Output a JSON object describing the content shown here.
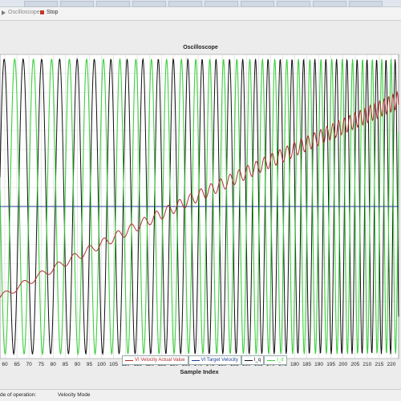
{
  "toolbar": {
    "oscilloscope_label": "Oscilloscope",
    "stop_label": "Stop"
  },
  "status": {
    "mode_prefix": "de of operation:",
    "mode_value": "Velocity Mode"
  },
  "colors": {
    "actual": "#b03030",
    "target": "#1f3f8f",
    "iq": "#101010",
    "id": "#3ecf3e"
  },
  "chart_data": {
    "type": "line",
    "title": "Oscilloscope",
    "xlabel": "Sample Index",
    "ylabel": "",
    "x_ticks": [
      60,
      65,
      70,
      75,
      80,
      85,
      90,
      95,
      100,
      105,
      110,
      115,
      120,
      125,
      130,
      135,
      140,
      145,
      150,
      155,
      160,
      165,
      170,
      175,
      180,
      185,
      190,
      195,
      200,
      205,
      210,
      215,
      220
    ],
    "xlim": [
      58,
      223
    ],
    "ylim": [
      -1,
      1
    ],
    "grid": true,
    "legend_position": "bottom",
    "series": [
      {
        "name": "VI Velocity Actual Value",
        "values_desc": "ramp",
        "start": -0.6,
        "end": 0.7
      },
      {
        "name": "VI Target Velocity",
        "values_desc": "constant",
        "value": 0.0
      },
      {
        "name": "I_q",
        "period_start": 8,
        "period_end": 3.7,
        "amplitude": 1.0
      },
      {
        "name": "I_d",
        "period_start": 8,
        "period_end": 3.7,
        "amplitude": 1.0
      }
    ]
  }
}
